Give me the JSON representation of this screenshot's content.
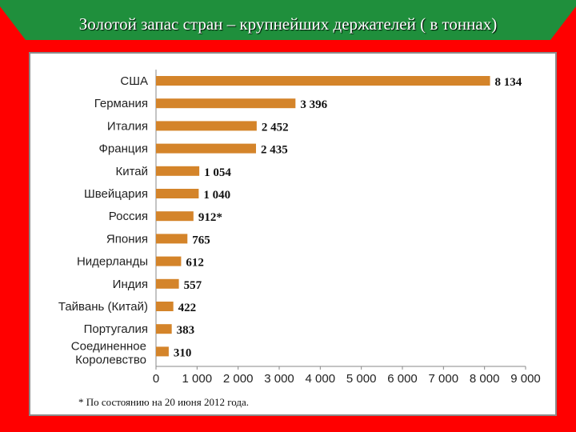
{
  "slide": {
    "title": "Золотой запас стран – крупнейших держателей ( в тоннах)",
    "background_color": "#ff0000",
    "banner_color": "#1f8f3c"
  },
  "chart_data": {
    "type": "bar",
    "orientation": "horizontal",
    "categories": [
      "США",
      "Германия",
      "Италия",
      "Франция",
      "Китай",
      "Швейцария",
      "Россия",
      "Япония",
      "Нидерланды",
      "Индия",
      "Тайвань (Китай)",
      "Португалия",
      "Соединенное Королевство"
    ],
    "values": [
      8134,
      3396,
      2452,
      2435,
      1054,
      1040,
      912,
      765,
      612,
      557,
      422,
      383,
      310
    ],
    "value_labels": [
      "8 134",
      "3 396",
      "2 452",
      "2 435",
      "1 054",
      "1 040",
      "912*",
      "765",
      "612",
      "557",
      "422",
      "383",
      "310"
    ],
    "highlight": {
      "category": "Россия",
      "label_color": "#c0392b"
    },
    "xlim": [
      0,
      9000
    ],
    "xticks": [
      "0",
      "1 000",
      "2 000",
      "3 000",
      "4 000",
      "5 000",
      "6 000",
      "7 000",
      "8 000",
      "9 000"
    ],
    "bar_color": "#d4842a",
    "grid": false,
    "footnote": "* По состоянию на 20 июня 2012 года."
  }
}
